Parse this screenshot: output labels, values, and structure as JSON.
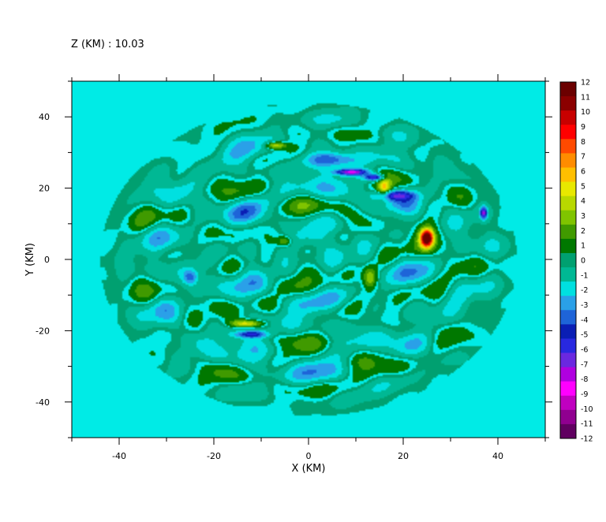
{
  "chart_data": {
    "type": "heatmap",
    "header_text": "Z (KM) : 10.03",
    "xlabel": "X (KM)",
    "ylabel": "Y (KM)",
    "xlim": [
      -50,
      50
    ],
    "ylim": [
      -50,
      50
    ],
    "x_ticks": [
      -40,
      -20,
      0,
      20,
      40
    ],
    "y_ticks": [
      -40,
      -20,
      0,
      20,
      40
    ],
    "x_tick_labels": [
      "-40",
      "-20",
      "0",
      "20",
      "40"
    ],
    "y_tick_labels": [
      "-40",
      "-20",
      "0",
      "20",
      "40"
    ],
    "colorbar": {
      "levels": [
        12,
        11,
        10,
        9,
        8,
        7,
        6,
        5,
        4,
        3,
        2,
        1,
        0,
        -1,
        -2,
        -3,
        -4,
        -5,
        -6,
        -7,
        -8,
        -9,
        -10,
        -11,
        -12
      ],
      "labels": [
        "12",
        "11",
        "10",
        "9",
        "8",
        "7",
        "6",
        "5",
        "4",
        "3",
        "2",
        "1",
        "0",
        "-1",
        "-2",
        "-3",
        "-4",
        "-5",
        "-6",
        "-7",
        "-8",
        "-9",
        "-10",
        "-11",
        "-12"
      ],
      "colors": [
        "#6b0000",
        "#8b0000",
        "#c80000",
        "#ff0000",
        "#ff4a00",
        "#ff8c00",
        "#ffbf00",
        "#e8e800",
        "#b8d800",
        "#80c400",
        "#409a00",
        "#007800",
        "#00a070",
        "#00b894",
        "#00e0e0",
        "#2aa0e8",
        "#1e64d8",
        "#0a1eb4",
        "#2828e0",
        "#6a28e0",
        "#b000e0",
        "#ff00ff",
        "#c000c0",
        "#900090",
        "#600060"
      ]
    },
    "grid": false,
    "legend": "colorbar-right",
    "background_value": 0,
    "features": [
      {
        "x": 25,
        "y": 6,
        "value": 12,
        "sx": 1.2,
        "sy": 2.2
      },
      {
        "x": 25,
        "y": 6,
        "value": 4,
        "sx": 2.4,
        "sy": 4
      },
      {
        "x": 9,
        "y": 24.5,
        "value": -8,
        "sx": 3.2,
        "sy": 0.8
      },
      {
        "x": 14,
        "y": 23,
        "value": -7,
        "sx": 2,
        "sy": 0.9
      },
      {
        "x": 16,
        "y": 20,
        "value": 5,
        "sx": 1.3,
        "sy": 2.5
      },
      {
        "x": 37,
        "y": 13,
        "value": -7,
        "sx": 0.7,
        "sy": 1.6
      },
      {
        "x": -7,
        "y": 32,
        "value": 5,
        "sx": 2.2,
        "sy": 1
      },
      {
        "x": -13,
        "y": -18,
        "value": 5,
        "sx": 3.5,
        "sy": 1
      },
      {
        "x": -12,
        "y": -21,
        "value": -5,
        "sx": 3.5,
        "sy": 1
      },
      {
        "x": 13,
        "y": -5,
        "value": 4,
        "sx": 1.5,
        "sy": 3
      },
      {
        "x": 18,
        "y": 18,
        "value": -5,
        "sx": 4,
        "sy": 1.3
      },
      {
        "x": 5,
        "y": 28,
        "value": -4,
        "sx": 6,
        "sy": 2
      },
      {
        "x": -5,
        "y": 5,
        "value": 3,
        "sx": 1.5,
        "sy": 1.5
      },
      {
        "x": -25,
        "y": -5,
        "value": -3,
        "sx": 1.5,
        "sy": 2
      }
    ]
  }
}
